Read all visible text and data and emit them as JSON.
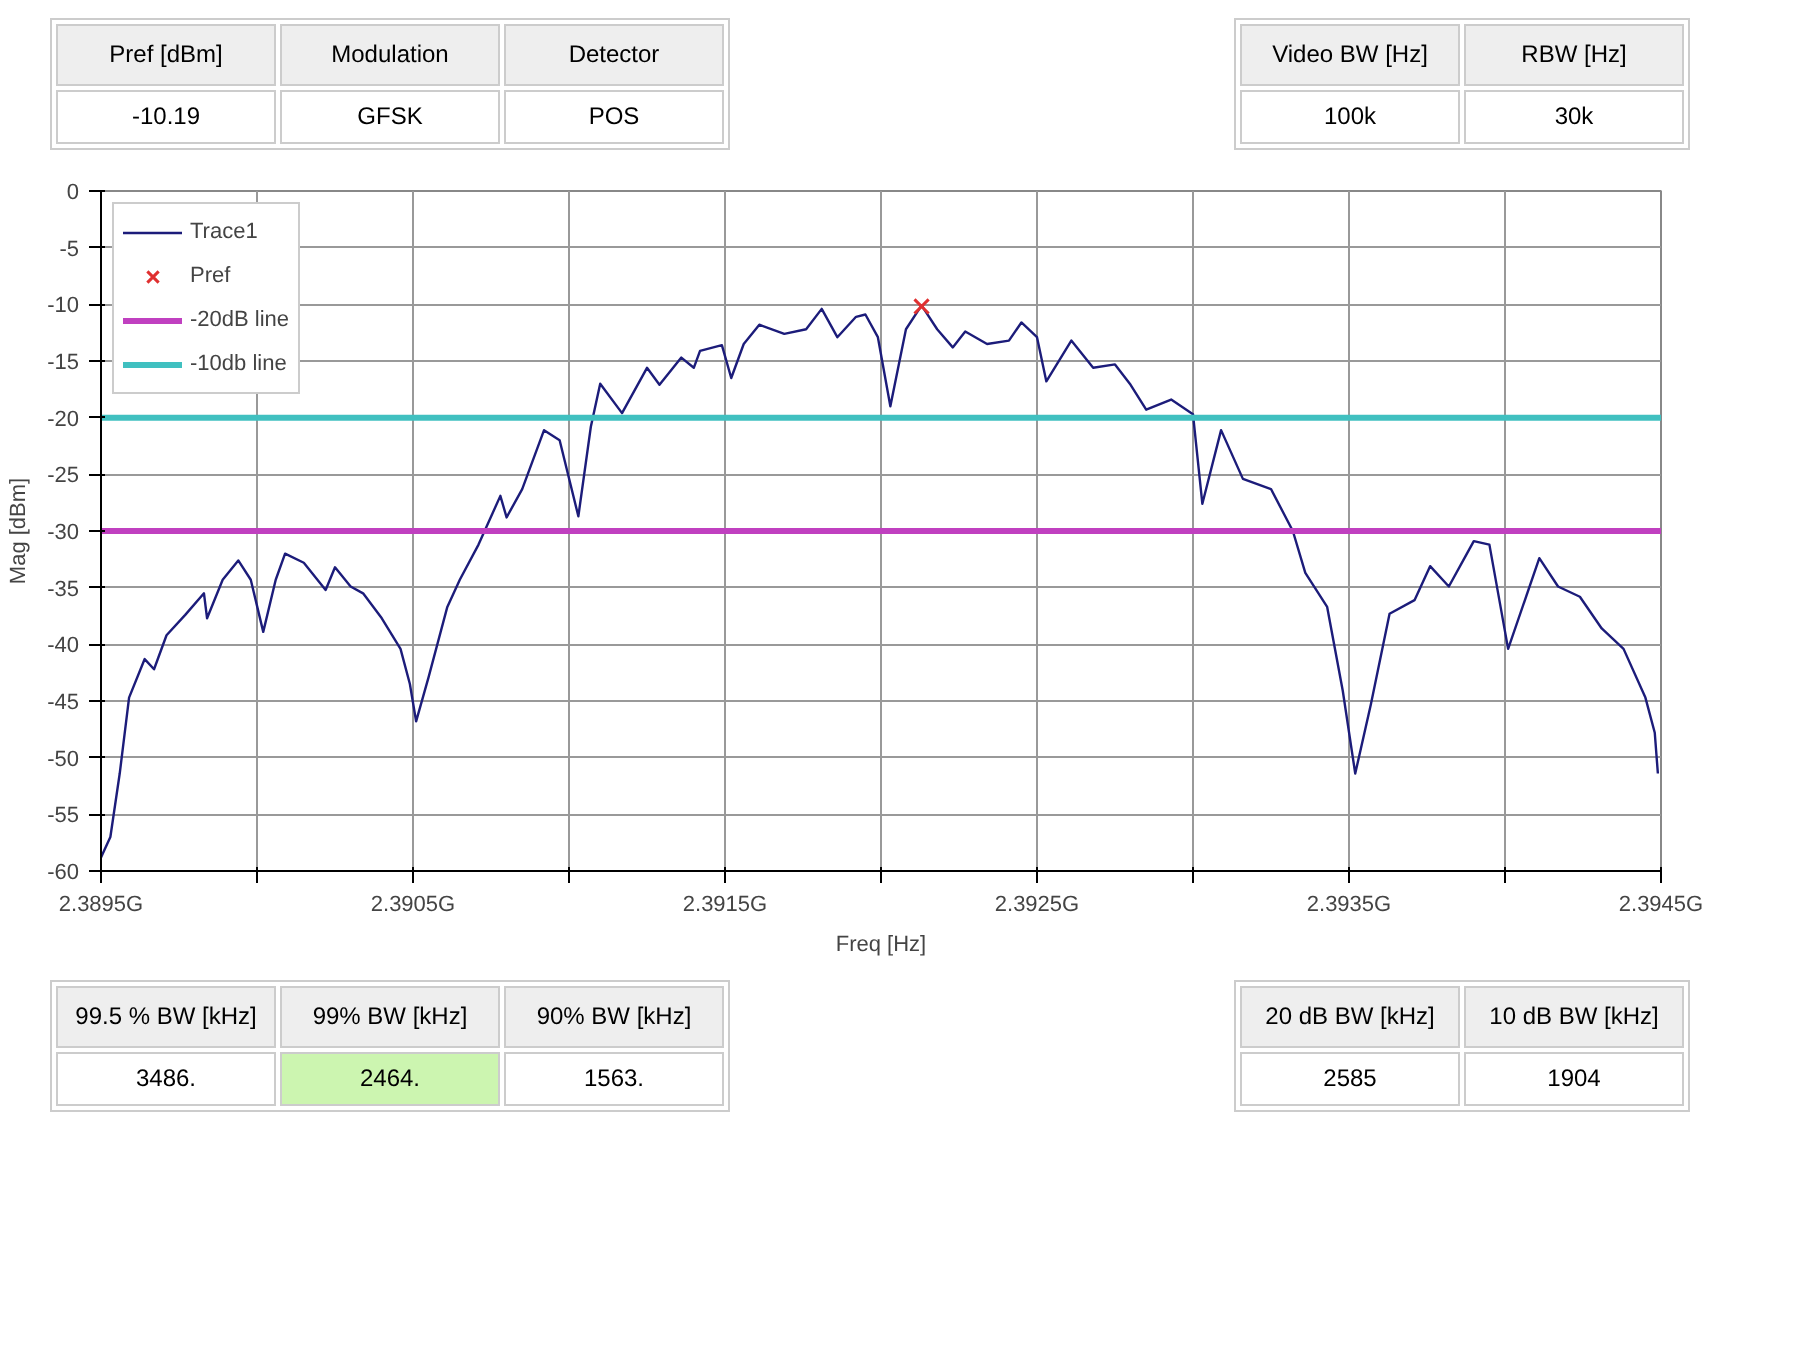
{
  "chart_data": {
    "type": "line",
    "xlabel": "Freq [Hz]",
    "ylabel": "Mag [dBm]",
    "xlim": [
      2.3895,
      2.3945
    ],
    "ylim": [
      -60,
      0
    ],
    "xticks": [
      {
        "value": 2.3895,
        "label": "2.3895G"
      },
      {
        "value": 2.39,
        "label": null
      },
      {
        "value": 2.3905,
        "label": "2.3905G"
      },
      {
        "value": 2.391,
        "label": null
      },
      {
        "value": 2.3915,
        "label": "2.3915G"
      },
      {
        "value": 2.392,
        "label": null
      },
      {
        "value": 2.3925,
        "label": "2.3925G"
      },
      {
        "value": 2.393,
        "label": null
      },
      {
        "value": 2.3935,
        "label": "2.3935G"
      },
      {
        "value": 2.394,
        "label": null
      },
      {
        "value": 2.3945,
        "label": "2.3945G"
      }
    ],
    "yticks": [
      0,
      -5,
      -10,
      -15,
      -20,
      -25,
      -30,
      -35,
      -40,
      -45,
      -50,
      -55,
      -60
    ],
    "grid": true,
    "legend": "left",
    "line_style": "solid",
    "series": [
      {
        "name": "Trace1",
        "color": "#1c1c7a",
        "marker": "none",
        "x": [
          2.3895,
          2.38953,
          2.38956,
          2.38959,
          2.38964,
          2.38967,
          2.38971,
          2.38977,
          2.38983,
          2.38984,
          2.38989,
          2.38994,
          2.38998,
          2.39002,
          2.39006,
          2.39009,
          2.39015,
          2.39022,
          2.39025,
          2.3903,
          2.39034,
          2.3904,
          2.39046,
          2.39049,
          2.39051,
          2.39055,
          2.39061,
          2.39065,
          2.39071,
          2.39078,
          2.3908,
          2.39085,
          2.39092,
          2.39097,
          2.39103,
          2.39107,
          2.3911,
          2.39117,
          2.39125,
          2.39129,
          2.39136,
          2.3914,
          2.39142,
          2.39149,
          2.39152,
          2.39156,
          2.39161,
          2.39169,
          2.39176,
          2.39181,
          2.39186,
          2.39192,
          2.39195,
          2.39199,
          2.39203,
          2.39208,
          2.39213,
          2.39218,
          2.39223,
          2.39227,
          2.39234,
          2.39241,
          2.39245,
          2.3925,
          2.39253,
          2.39261,
          2.39268,
          2.39275,
          2.3928,
          2.39285,
          2.39293,
          2.393,
          2.39303,
          2.39309,
          2.39316,
          2.39325,
          2.39332,
          2.39336,
          2.39343,
          2.39348,
          2.39352,
          2.39357,
          2.39363,
          2.39371,
          2.39376,
          2.39382,
          2.39387,
          2.3939,
          2.39395,
          2.39401,
          2.39411,
          2.39417,
          2.39424,
          2.39431,
          2.39438,
          2.39445,
          2.39448,
          2.39449
        ],
        "values": [
          -58.8,
          -57,
          -51.4,
          -44.7,
          -41.3,
          -42.2,
          -39.2,
          -37.4,
          -35.5,
          -37.7,
          -34.3,
          -32.6,
          -34.3,
          -38.9,
          -34.3,
          -32.0,
          -32.8,
          -35.2,
          -33.2,
          -34.9,
          -35.5,
          -37.7,
          -40.4,
          -43.5,
          -46.8,
          -42.9,
          -36.7,
          -34.3,
          -31.2,
          -26.9,
          -28.8,
          -26.3,
          -21.1,
          -22.0,
          -28.7,
          -20.8,
          -17.0,
          -19.6,
          -15.6,
          -17.1,
          -14.7,
          -15.6,
          -14.1,
          -13.6,
          -16.5,
          -13.5,
          -11.8,
          -12.6,
          -12.2,
          -10.4,
          -12.9,
          -11.1,
          -10.9,
          -12.9,
          -19.0,
          -12.2,
          -10.1,
          -12.2,
          -13.8,
          -12.4,
          -13.5,
          -13.2,
          -11.6,
          -12.9,
          -16.8,
          -13.2,
          -15.6,
          -15.3,
          -17.1,
          -19.3,
          -18.4,
          -19.7,
          -27.6,
          -21.1,
          -25.4,
          -26.3,
          -30.0,
          -33.7,
          -36.7,
          -44.1,
          -51.4,
          -45.3,
          -37.3,
          -36.1,
          -33.1,
          -34.9,
          -32.4,
          -30.9,
          -31.2,
          -40.4,
          -32.4,
          -34.9,
          -35.8,
          -38.6,
          -40.4,
          -44.7,
          -47.8,
          -51.4
        ]
      },
      {
        "name": "Pref",
        "type": "scatter",
        "color": "#e03030",
        "marker": "cross",
        "x": [
          2.39213
        ],
        "values": [
          -10.19
        ]
      }
    ],
    "ref_lines": [
      {
        "axis": "y",
        "value": -30,
        "label": "-20dB line",
        "color": "#c040c0"
      },
      {
        "axis": "y",
        "value": -20,
        "label": "-10db line",
        "color": "#40c0c0"
      }
    ],
    "annotations": [
      "Pref [dBm]",
      "-10.19",
      "Modulation",
      "GFSK",
      "Detector",
      "POS",
      "Video BW [Hz]",
      "100k",
      "RBW [Hz]",
      "30k",
      "99.5 % BW [kHz]",
      "3486.",
      "99% BW [kHz]",
      "2464.",
      "90% BW [kHz]",
      "1563.",
      "20 dB BW [kHz]",
      "2585",
      "10 dB BW [kHz]",
      "1904"
    ]
  }
}
